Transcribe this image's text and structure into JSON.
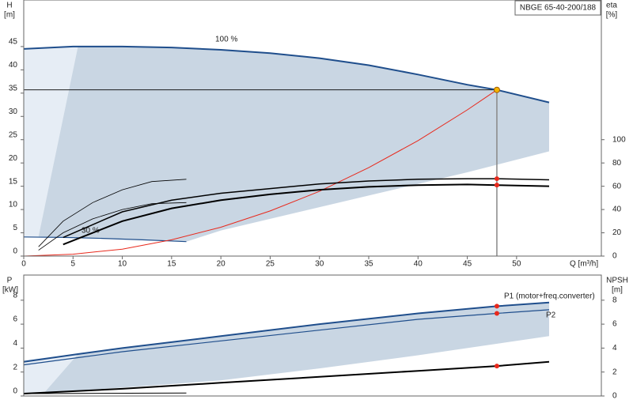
{
  "chart_data": [
    {
      "type": "line",
      "annotation": "NBGE 65-40-200/188",
      "xlabel": "Q [m³/h]",
      "ylabel": "H",
      "yunit": "[m]",
      "y2label": "eta",
      "y2unit": "[%]",
      "xlim": [
        0,
        58.6
      ],
      "xticks": [
        0,
        5,
        10,
        15,
        20,
        25,
        30,
        35,
        40,
        45,
        50
      ],
      "ylim": [
        0,
        55
      ],
      "yticks": [
        0,
        5,
        10,
        15,
        20,
        25,
        30,
        35,
        40,
        45
      ],
      "y2lim": [
        0,
        220
      ],
      "y2ticks": [
        0,
        20,
        40,
        60,
        80,
        100
      ],
      "regions": [
        {
          "color": "#e6edf5",
          "x": [
            0,
            5.5,
            1.5,
            0
          ],
          "values": [
            44.5,
            45,
            4.2,
            4.2
          ]
        },
        {
          "color": "#c9d6e3",
          "x": [
            1.5,
            5.5,
            10,
            15,
            20,
            25,
            30,
            35,
            40,
            45,
            48,
            53.3,
            53.3,
            45,
            40,
            35,
            30,
            25,
            20,
            16.5
          ],
          "values": [
            4.2,
            45,
            45,
            44.8,
            44.3,
            43.6,
            42.5,
            41,
            39,
            36.8,
            35.7,
            33,
            22.5,
            18,
            15.5,
            13,
            10.5,
            8,
            5.5,
            3.1
          ]
        }
      ],
      "series": [
        {
          "name": "100 %",
          "color": "#1f4e8c",
          "width": 2,
          "x": [
            0,
            5,
            10,
            15,
            20,
            25,
            30,
            35,
            40,
            45,
            48,
            53.3
          ],
          "values": [
            44.5,
            45,
            45,
            44.8,
            44.3,
            43.6,
            42.5,
            41,
            39,
            36.8,
            35.7,
            33
          ]
        },
        {
          "name": "30 %",
          "color": "#1f4e8c",
          "width": 1.2,
          "x": [
            0,
            4,
            8,
            12,
            16.5
          ],
          "values": [
            4.1,
            4.0,
            3.8,
            3.5,
            3.1
          ]
        },
        {
          "color": "#e8291c",
          "width": 1,
          "x": [
            0,
            5,
            10,
            15,
            20,
            25,
            30,
            35,
            40,
            45,
            48
          ],
          "values": [
            0,
            0.4,
            1.5,
            3.5,
            6.2,
            9.7,
            13.9,
            19,
            24.8,
            31.4,
            35.7
          ]
        },
        {
          "color": "#000000",
          "width": 0.8,
          "axis": "y2",
          "x": [
            1.5,
            4,
            7,
            10,
            13,
            16.5
          ],
          "values": [
            8,
            30,
            46,
            57,
            64,
            66
          ]
        },
        {
          "color": "#000000",
          "width": 0.8,
          "axis": "y2",
          "x": [
            1.5,
            4,
            7,
            10,
            13,
            16.5
          ],
          "values": [
            5,
            20,
            32,
            40,
            45,
            46
          ]
        },
        {
          "color": "#000000",
          "width": 1.5,
          "axis": "y2",
          "x": [
            4,
            10,
            15,
            20,
            25,
            30,
            35,
            40,
            45,
            48,
            53.3
          ],
          "values": [
            16,
            38,
            48,
            54,
            58,
            62,
            64.5,
            66,
            66.5,
            66.5,
            65.5
          ]
        },
        {
          "color": "#000000",
          "width": 2,
          "axis": "y2",
          "x": [
            4,
            10,
            15,
            20,
            25,
            30,
            35,
            40,
            45,
            48,
            53.3
          ],
          "values": [
            10,
            30,
            41,
            48,
            53,
            57,
            59.5,
            61,
            61.5,
            61,
            60
          ]
        }
      ],
      "markers": [
        {
          "x": 48,
          "y": 66.5,
          "axis": "y2",
          "color": "#e8291c"
        },
        {
          "x": 48,
          "y": 61,
          "axis": "y2",
          "color": "#e8291c"
        }
      ],
      "duty_point": {
        "x": 48,
        "y": 35.7,
        "color": "#f5b400"
      }
    },
    {
      "type": "line",
      "ylabel": "P",
      "yunit": "[kW]",
      "y2label": "NPSH",
      "y2unit": "[m]",
      "xlim": [
        0,
        58.6
      ],
      "ylim": [
        0,
        10.1
      ],
      "yticks": [
        0,
        2,
        4,
        6,
        8
      ],
      "y2lim": [
        0,
        10.1
      ],
      "y2ticks": [
        0,
        2,
        4,
        6,
        8
      ],
      "regions": [
        {
          "color": "#e6edf5",
          "x": [
            0,
            5.5,
            2,
            0
          ],
          "values": [
            3.0,
            3.5,
            0.2,
            0.2
          ]
        },
        {
          "color": "#c9d6e3",
          "x": [
            2,
            5.5,
            10,
            15,
            20,
            25,
            30,
            35,
            40,
            45,
            48,
            53.3,
            53.3,
            45,
            40,
            30,
            20,
            10,
            5
          ],
          "values": [
            0.2,
            3.5,
            4.0,
            4.5,
            5.0,
            5.5,
            6.0,
            6.5,
            6.9,
            7.3,
            7.5,
            7.8,
            5.0,
            4.0,
            3.4,
            2.3,
            1.3,
            0.7,
            0.4
          ]
        }
      ],
      "series": [
        {
          "name": "P1 (motor+freq.converter)",
          "color": "#1f4e8c",
          "width": 2,
          "x": [
            0,
            5.5,
            10,
            20,
            30,
            40,
            48,
            53.3
          ],
          "values": [
            2.85,
            3.5,
            4.0,
            5.0,
            6.0,
            6.9,
            7.5,
            7.8
          ]
        },
        {
          "name": "P2",
          "color": "#1f4e8c",
          "width": 1.2,
          "x": [
            0,
            5.5,
            10,
            20,
            30,
            40,
            48,
            53.3
          ],
          "values": [
            2.6,
            3.2,
            3.7,
            4.6,
            5.5,
            6.4,
            6.9,
            7.2
          ]
        },
        {
          "color": "#000000",
          "width": 2,
          "axis": "y2",
          "x": [
            0,
            10,
            20,
            30,
            40,
            48,
            53.3
          ],
          "values": [
            0.2,
            0.6,
            1.1,
            1.6,
            2.1,
            2.5,
            2.85
          ]
        },
        {
          "color": "#000000",
          "width": 1,
          "x": [
            0,
            16.5
          ],
          "values": [
            0.2,
            0.25
          ]
        }
      ],
      "markers": [
        {
          "x": 48,
          "y": 7.5,
          "color": "#e8291c"
        },
        {
          "x": 48,
          "y": 6.9,
          "color": "#e8291c"
        },
        {
          "x": 48,
          "y": 2.5,
          "axis": "y2",
          "color": "#e8291c"
        }
      ]
    }
  ]
}
